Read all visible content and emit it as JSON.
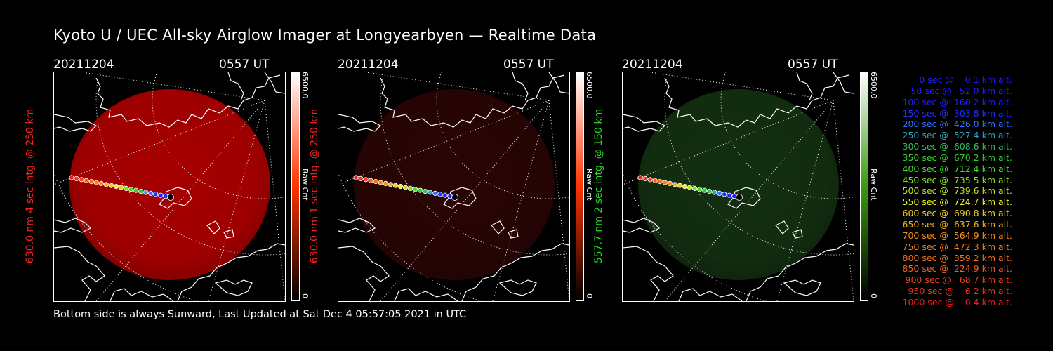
{
  "title": "Kyoto U / UEC All-sky Airglow Imager at Longyearbyen — Realtime Data",
  "footer": "Bottom side is always Sunward, Last Updated at Sat Dec  4 05:57:05 2021 in UTC",
  "panels": [
    {
      "date": "20211204",
      "time": "0557 UT",
      "ylabel": "630.0 nm 4 sec intg. @ 250 km",
      "label_color": "#ff2020",
      "cb_max": "6500.0",
      "cb_min": "0",
      "cb_unit": "Raw Cnt",
      "tint": "#c40000",
      "intensity": 0.85,
      "cb_color": "#ff3300"
    },
    {
      "date": "20211204",
      "time": "0557 UT",
      "ylabel": "630.0 nm 1 sec intg. @ 250 km",
      "label_color": "#ff2020",
      "cb_max": "6500.0",
      "cb_min": "0",
      "cb_unit": "Raw Cnt",
      "tint": "#4a0808",
      "intensity": 0.55,
      "cb_color": "#ff3300"
    },
    {
      "date": "20211204",
      "time": "0557 UT",
      "ylabel": "557.7 nm 2 sec intg. @ 150 km",
      "label_color": "#22dd22",
      "cb_max": "6500.0",
      "cb_min": "0",
      "cb_unit": "Raw Cnt",
      "tint": "#1f4d1c",
      "intensity": 0.6,
      "cb_color": "#3a9a10"
    }
  ],
  "legend": [
    {
      "text": "   0 sec @    0.1 km alt.",
      "color": "#2020ff"
    },
    {
      "text": "  50 sec @   52.0 km alt.",
      "color": "#2020ff"
    },
    {
      "text": " 100 sec @  160.2 km alt.",
      "color": "#2020ff"
    },
    {
      "text": " 150 sec @  303.8 km alt.",
      "color": "#2030ff"
    },
    {
      "text": " 200 sec @  426.0 km alt.",
      "color": "#3070ff"
    },
    {
      "text": " 250 sec @  527.4 km alt.",
      "color": "#30a0c0"
    },
    {
      "text": " 300 sec @  608.6 km alt.",
      "color": "#30c060"
    },
    {
      "text": " 350 sec @  670.2 km alt.",
      "color": "#30d030"
    },
    {
      "text": " 400 sec @  712.4 km alt.",
      "color": "#40e020"
    },
    {
      "text": " 450 sec @  735.5 km alt.",
      "color": "#80e020"
    },
    {
      "text": " 500 sec @  739.6 km alt.",
      "color": "#c0e020"
    },
    {
      "text": " 550 sec @  724.7 km alt.",
      "color": "#f0f020"
    },
    {
      "text": " 600 sec @  690.8 km alt.",
      "color": "#f0d020"
    },
    {
      "text": " 650 sec @  637.6 km alt.",
      "color": "#f0b020"
    },
    {
      "text": " 700 sec @  564.9 km alt.",
      "color": "#f09020"
    },
    {
      "text": " 750 sec @  472.3 km alt.",
      "color": "#f08020"
    },
    {
      "text": " 800 sec @  359.2 km alt.",
      "color": "#f07020"
    },
    {
      "text": " 850 sec @  224.9 km alt.",
      "color": "#f06020"
    },
    {
      "text": " 900 sec @   68.7 km alt.",
      "color": "#f04020"
    },
    {
      "text": " 950 sec @    6.2 km alt.",
      "color": "#f03020"
    },
    {
      "text": "1000 sec @    0.4 km alt.",
      "color": "#f02020"
    }
  ]
}
